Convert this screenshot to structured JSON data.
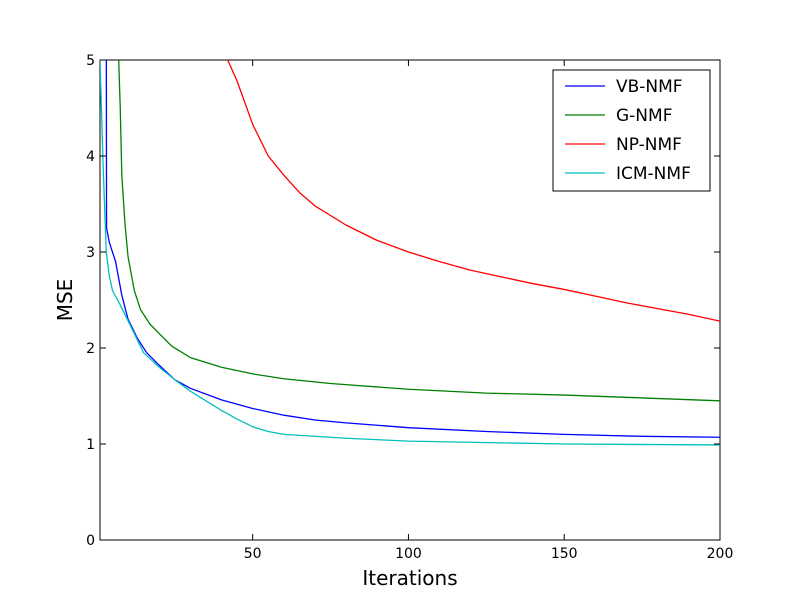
{
  "chart_data": {
    "type": "line",
    "xlabel": "Iterations",
    "ylabel": "MSE",
    "xlim": [
      1,
      200
    ],
    "ylim": [
      0,
      5
    ],
    "xticks": [
      50,
      100,
      150,
      200
    ],
    "yticks": [
      0,
      1,
      2,
      3,
      4,
      5
    ],
    "grid": false,
    "legend_position": "top-right",
    "series": [
      {
        "name": "VB-NMF",
        "color": "#0000ff",
        "x": [
          3,
          3.1,
          4,
          6,
          8,
          10,
          13,
          16,
          20,
          25,
          30,
          40,
          50,
          60,
          70,
          80,
          100,
          125,
          150,
          175,
          200
        ],
        "y": [
          6.0,
          3.25,
          3.1,
          2.9,
          2.55,
          2.3,
          2.1,
          1.95,
          1.82,
          1.67,
          1.58,
          1.46,
          1.37,
          1.3,
          1.25,
          1.22,
          1.17,
          1.13,
          1.1,
          1.08,
          1.07
        ]
      },
      {
        "name": "G-NMF",
        "color": "#008000",
        "x": [
          7,
          7.5,
          8,
          9,
          10,
          12,
          14,
          17,
          20,
          24,
          30,
          40,
          50,
          60,
          75,
          100,
          125,
          150,
          175,
          200
        ],
        "y": [
          5.0,
          4.5,
          3.8,
          3.3,
          2.95,
          2.6,
          2.4,
          2.25,
          2.15,
          2.02,
          1.9,
          1.8,
          1.73,
          1.68,
          1.63,
          1.57,
          1.53,
          1.51,
          1.48,
          1.45
        ]
      },
      {
        "name": "NP-NMF",
        "color": "#ff0000",
        "x": [
          42,
          45,
          50,
          55,
          60,
          65,
          70,
          80,
          90,
          100,
          110,
          120,
          130,
          140,
          150,
          160,
          170,
          180,
          190,
          200
        ],
        "y": [
          5.0,
          4.78,
          4.33,
          4.0,
          3.8,
          3.62,
          3.48,
          3.28,
          3.12,
          3.0,
          2.9,
          2.81,
          2.74,
          2.67,
          2.61,
          2.54,
          2.47,
          2.41,
          2.35,
          2.28
        ]
      },
      {
        "name": "ICM-NMF",
        "color": "#00bfbf",
        "x": [
          1,
          2,
          3,
          4,
          5,
          7,
          9,
          12,
          15,
          20,
          25,
          30,
          35,
          40,
          45,
          50,
          55,
          60,
          80,
          100,
          150,
          200
        ],
        "y": [
          5.0,
          3.9,
          3.0,
          2.75,
          2.6,
          2.48,
          2.35,
          2.15,
          1.95,
          1.8,
          1.67,
          1.55,
          1.45,
          1.35,
          1.26,
          1.18,
          1.13,
          1.1,
          1.06,
          1.03,
          1.0,
          0.99
        ]
      }
    ]
  }
}
